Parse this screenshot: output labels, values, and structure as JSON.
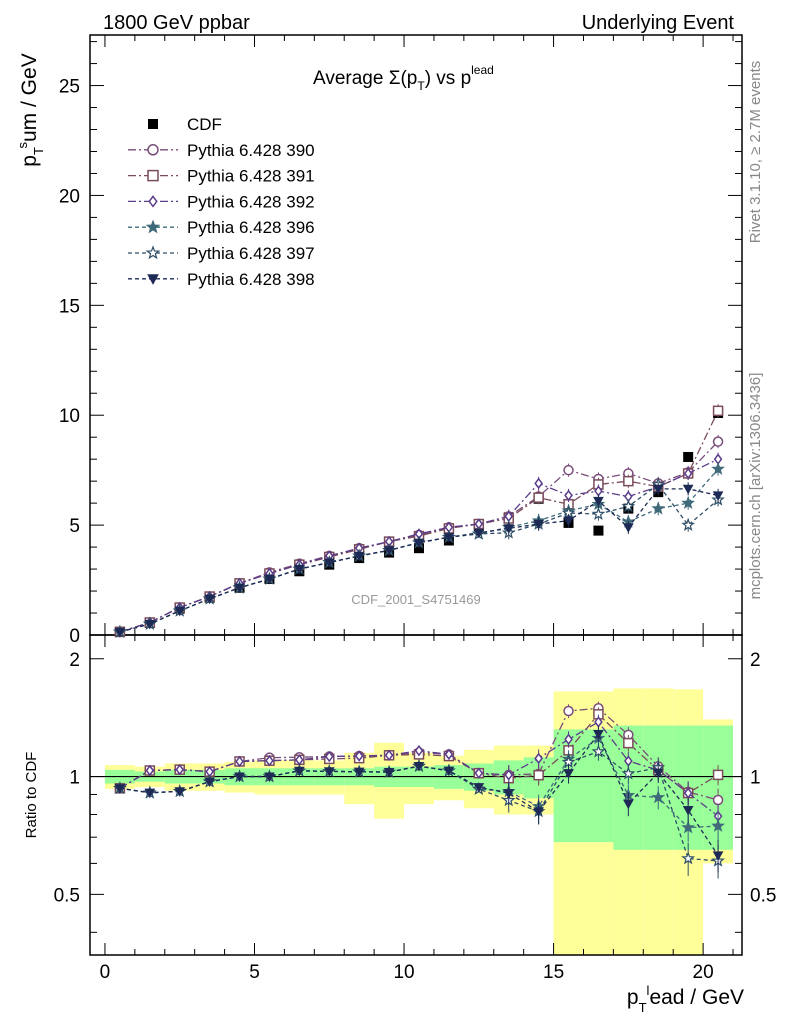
{
  "header": {
    "left": "1800 GeV ppbar",
    "right": "Underlying Event"
  },
  "side_labels": {
    "rivet": "Rivet 3.1.10, ≥ 2.7M events",
    "mcplots": "mcplots.cern.ch [arXiv:1306.3436]"
  },
  "chart_data": {
    "type": "scatter",
    "title": "Average Σ(p_T) vs p_T^lead",
    "title_main": "Average Σ(p",
    "title_sub_T": "T",
    "title_vs": ") vs p",
    "title_sup": "lead",
    "analysis_label": "CDF_2001_S4751469",
    "xlabel": "p_T^lead / GeV",
    "ylabel": "p_T^sum / GeV",
    "ratio_ylabel": "Ratio to CDF",
    "xlim": [
      -0.5,
      21.3
    ],
    "ylim": [
      0,
      27.3
    ],
    "ratio_ylim": [
      0.35,
      2.3
    ],
    "x_ticks": [
      0,
      5,
      10,
      15,
      20
    ],
    "y_ticks": [
      0,
      5,
      10,
      15,
      20,
      25
    ],
    "ratio_ticks": [
      0.5,
      1,
      2
    ],
    "x_tick_labels": [
      "0",
      "5",
      "10",
      "15",
      "20"
    ],
    "y_tick_labels": [
      "0",
      "5",
      "10",
      "15",
      "20",
      "25"
    ],
    "ratio_tick_labels": [
      "0.5",
      "1",
      "2"
    ],
    "x": [
      0.5,
      1.5,
      2.5,
      3.5,
      4.5,
      5.5,
      6.5,
      7.5,
      8.5,
      9.5,
      10.5,
      11.5,
      12.5,
      13.5,
      14.5,
      15.5,
      16.5,
      17.5,
      18.5,
      19.5,
      20.5
    ],
    "data": {
      "name": "CDF",
      "values": [
        0.15,
        0.55,
        1.2,
        1.7,
        2.15,
        2.55,
        2.9,
        3.2,
        3.5,
        3.75,
        3.95,
        4.3,
        4.95,
        5.35,
        6.2,
        5.1,
        4.75,
        5.75,
        6.5,
        8.1,
        10.1
      ],
      "band_inner": [
        0.04,
        0.03,
        0.04,
        0.04,
        0.05,
        0.05,
        0.05,
        0.05,
        0.05,
        0.06,
        0.06,
        0.07,
        0.08,
        0.1,
        0.12,
        0.32,
        0.32,
        0.35,
        0.35,
        0.35,
        0.35
      ],
      "band_outer": [
        0.07,
        0.06,
        0.08,
        0.08,
        0.09,
        0.1,
        0.1,
        0.1,
        0.15,
        0.22,
        0.15,
        0.13,
        0.17,
        0.2,
        0.2,
        0.65,
        0.65,
        0.68,
        0.68,
        0.67,
        0.4
      ]
    },
    "series": [
      {
        "name": "Pythia 6.428 390",
        "color": "#7a4c7a",
        "marker": "circle-open",
        "dash": "8,3,2,3",
        "values": [
          0.14,
          0.57,
          1.25,
          1.75,
          2.35,
          2.85,
          3.25,
          3.6,
          3.95,
          4.25,
          4.55,
          4.9,
          5.05,
          5.4,
          6.3,
          7.5,
          7.1,
          7.35,
          6.9,
          7.4,
          8.8
        ]
      },
      {
        "name": "Pythia 6.428 391",
        "color": "#7a4c5a",
        "marker": "square-open",
        "dash": "8,3,2,3",
        "values": [
          0.14,
          0.57,
          1.25,
          1.75,
          2.35,
          2.8,
          3.2,
          3.55,
          3.9,
          4.25,
          4.5,
          4.85,
          5.05,
          5.3,
          6.25,
          5.95,
          6.85,
          7.0,
          6.75,
          7.35,
          10.2
        ]
      },
      {
        "name": "Pythia 6.428 392",
        "color": "#5a3c8a",
        "marker": "diamond-open",
        "dash": "8,3,2,3",
        "values": [
          0.14,
          0.57,
          1.25,
          1.75,
          2.35,
          2.8,
          3.2,
          3.6,
          3.95,
          4.25,
          4.6,
          4.9,
          5.05,
          5.4,
          6.9,
          6.35,
          6.55,
          6.3,
          6.75,
          7.35,
          8.0
        ]
      },
      {
        "name": "Pythia 6.428 396",
        "color": "#3f6a7a",
        "marker": "star-filled",
        "dash": "4,3",
        "values": [
          0.14,
          0.5,
          1.1,
          1.65,
          2.15,
          2.55,
          3.0,
          3.3,
          3.6,
          3.85,
          4.2,
          4.45,
          4.6,
          4.9,
          5.2,
          5.65,
          5.95,
          5.15,
          5.75,
          6.0,
          7.55
        ]
      },
      {
        "name": "Pythia 6.428 397",
        "color": "#2e4e66",
        "marker": "star-open",
        "dash": "4,3",
        "values": [
          0.14,
          0.5,
          1.1,
          1.65,
          2.15,
          2.55,
          3.0,
          3.3,
          3.6,
          3.85,
          4.2,
          4.45,
          4.6,
          4.65,
          5.05,
          5.55,
          5.5,
          5.85,
          6.85,
          5.0,
          6.15
        ]
      },
      {
        "name": "Pythia 6.428 398",
        "color": "#1d2a55",
        "marker": "triangle-down-filled",
        "dash": "4,3",
        "values": [
          0.14,
          0.5,
          1.1,
          1.65,
          2.15,
          2.55,
          3.0,
          3.3,
          3.6,
          3.85,
          4.2,
          4.45,
          4.65,
          4.85,
          5.05,
          5.2,
          6.1,
          4.9,
          6.65,
          6.65,
          6.35
        ]
      }
    ],
    "legend_placement": "top-left",
    "grid": false
  }
}
